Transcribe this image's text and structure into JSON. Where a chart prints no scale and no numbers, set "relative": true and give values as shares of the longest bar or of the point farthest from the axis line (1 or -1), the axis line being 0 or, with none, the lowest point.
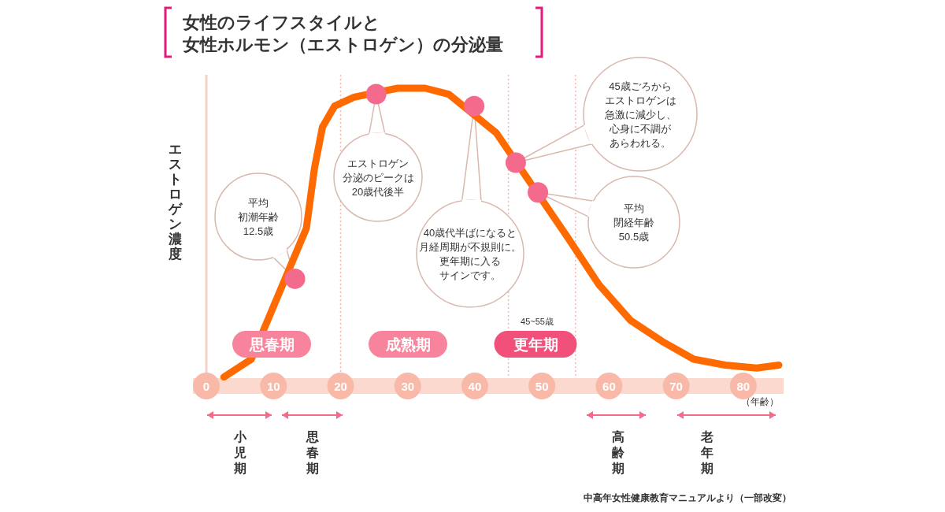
{
  "chart_data": {
    "type": "line",
    "relative": true,
    "title": "女性のライフスタイルと女性ホルモン（エストロゲン）の分泌量",
    "ylabel": "エストロゲン濃度",
    "xlabel": "（年齢）",
    "xlim": [
      -2,
      86
    ],
    "xticks": [
      0,
      10,
      20,
      30,
      40,
      50,
      60,
      70,
      80
    ],
    "series": [
      {
        "color": "#ff6a00",
        "x": [
          2.6,
          6.7,
          14.9,
          16.1,
          17.3,
          19.1,
          22,
          28.5,
          32.6,
          36.1,
          43.2,
          53.8,
          58.5,
          63.2,
          67.9,
          72.6,
          77.3,
          82,
          85.3
        ],
        "values": [
          0.03,
          0.09,
          0.53,
          0.73,
          0.87,
          0.94,
          0.97,
          1.0,
          1.0,
          0.98,
          0.85,
          0.5,
          0.34,
          0.22,
          0.15,
          0.09,
          0.07,
          0.06,
          0.07
        ]
      },
      {
        "type": "scatter",
        "color": "#f46a8c",
        "x": [
          13.2,
          25.3,
          39.9,
          46.1,
          49.4
        ],
        "values": [
          0.36,
          0.98,
          0.94,
          0.75,
          0.65
        ]
      }
    ],
    "ref_lines": [
      {
        "axis": "x",
        "value": 0,
        "color": "#f7d0c8",
        "line_style": "solid"
      },
      {
        "axis": "x",
        "value": 20,
        "color": "#f4b8b0",
        "line_style": "dotted"
      },
      {
        "axis": "x",
        "value": 45,
        "color": "#f4b8b0",
        "line_style": "dotted"
      },
      {
        "axis": "x",
        "value": 55,
        "color": "#f4b8b0",
        "line_style": "dotted"
      }
    ],
    "annotations": [
      "平均初潮年齢12.5歳",
      "エストロゲン分泌のピークは20歳代後半",
      "40歳代半ばになると月経周期が不規則に。更年期に入るサインです。",
      "45歳ごろからエストロゲンは急激に減少し、心身に不調があらわれる。",
      "平均閉経年齢50.5歳",
      "思春期",
      "成熟期",
      "更年期",
      "45~55歳",
      "小児期",
      "思春期",
      "高齢期",
      "老年期",
      "中高年女性健康教育マニュアルより（一部改変）"
    ]
  }
}
